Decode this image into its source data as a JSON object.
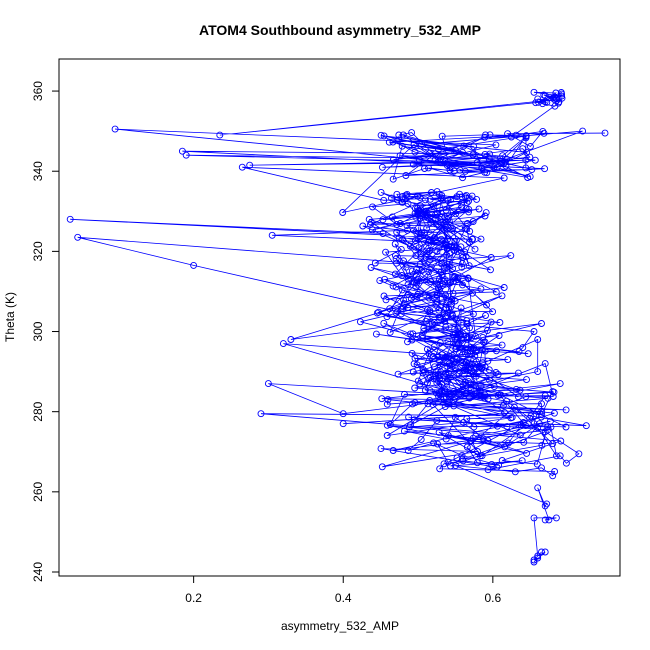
{
  "chart_data": {
    "type": "scatter",
    "title": "ATOM4 Southbound asymmetry_532_AMP",
    "xlabel": "asymmetry_532_AMP",
    "ylabel": "Theta (K)",
    "xlim": [
      0.02,
      0.77
    ],
    "ylim": [
      239,
      368
    ],
    "x_ticks": [
      0.2,
      0.4,
      0.6
    ],
    "y_ticks": [
      240,
      260,
      280,
      300,
      320,
      340,
      360
    ],
    "grid": false,
    "legend": "none",
    "series_color": "#0000ff",
    "series": [
      {
        "x": [
          0.655,
          0.66,
          0.665,
          0.67,
          0.672,
          0.66,
          0.675,
          0.68,
          0.685,
          0.665,
          0.69,
          0.68,
          0.67,
          0.66,
          0.63,
          0.655,
          0.66,
          0.665,
          0.67,
          0.68,
          0.69,
          0.645,
          0.66,
          0.67,
          0.62,
          0.635,
          0.64,
          0.66,
          0.655,
          0.665
        ],
        "y": [
          243,
          244,
          245,
          253,
          257,
          261,
          253,
          264,
          269,
          266,
          269,
          272,
          275,
          276,
          265,
          277,
          280,
          282,
          284,
          285,
          287,
          288,
          290,
          292,
          293,
          295,
          296,
          298,
          300,
          302
        ],
        "seed": 7,
        "note_points": 700
      }
    ]
  }
}
